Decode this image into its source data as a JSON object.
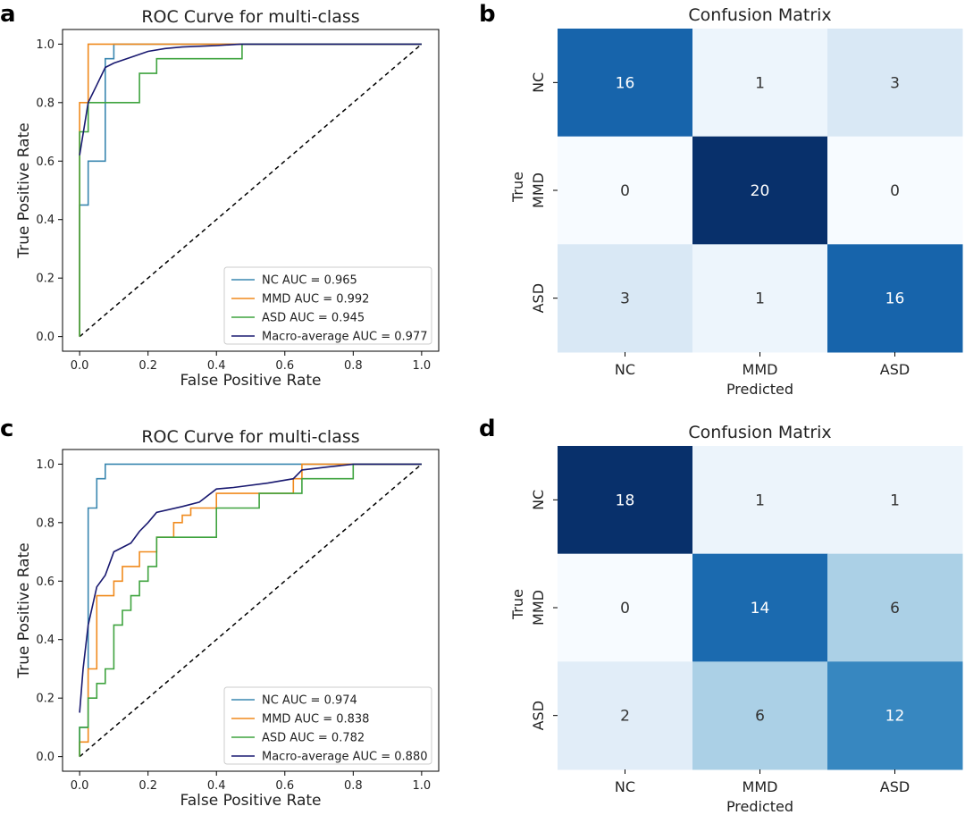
{
  "panel_labels": [
    "a",
    "b",
    "c",
    "d"
  ],
  "colors": {
    "nc": "#3a87b0",
    "mmd": "#f08a1d",
    "asd": "#3fa33f",
    "macro": "#191970",
    "diag": "#000000",
    "cm_low": "#f7fbff",
    "cm_high": "#08306b"
  },
  "chart_data": [
    {
      "type": "line",
      "panel": "a",
      "title": "ROC Curve for multi-class",
      "xlabel": "False Positive Rate",
      "ylabel": "True Positive Rate",
      "xlim": [
        -0.05,
        1.05
      ],
      "ylim": [
        -0.05,
        1.05
      ],
      "xticks": [
        "0.0",
        "0.2",
        "0.4",
        "0.6",
        "0.8",
        "1.0"
      ],
      "yticks": [
        "0.0",
        "0.2",
        "0.4",
        "0.6",
        "0.8",
        "1.0"
      ],
      "grid": false,
      "legend_position": "bottom-right",
      "series": [
        {
          "name": "NC AUC = 0.965",
          "color_key": "nc",
          "x": [
            0,
            0,
            0,
            0.025,
            0.025,
            0.075,
            0.075,
            0.1,
            0.1,
            1.0
          ],
          "y": [
            0,
            0.45,
            0.45,
            0.45,
            0.6,
            0.6,
            0.95,
            0.95,
            1.0,
            1.0
          ]
        },
        {
          "name": "MMD AUC = 0.992",
          "color_key": "mmd",
          "x": [
            0,
            0,
            0.025,
            0.025,
            1.0
          ],
          "y": [
            0,
            0.8,
            0.8,
            1.0,
            1.0
          ]
        },
        {
          "name": "ASD AUC = 0.945",
          "color_key": "asd",
          "x": [
            0,
            0,
            0.025,
            0.025,
            0.175,
            0.175,
            0.225,
            0.225,
            0.475,
            0.475,
            1.0
          ],
          "y": [
            0,
            0.7,
            0.7,
            0.8,
            0.8,
            0.9,
            0.9,
            0.95,
            0.95,
            1.0,
            1.0
          ]
        },
        {
          "name": "Macro-average AUC = 0.977",
          "color_key": "macro",
          "x": [
            0,
            0.025,
            0.05,
            0.075,
            0.1,
            0.15,
            0.2,
            0.25,
            0.3,
            0.4,
            0.47,
            0.6,
            0.8,
            1.0
          ],
          "y": [
            0.62,
            0.8,
            0.86,
            0.92,
            0.935,
            0.955,
            0.975,
            0.985,
            0.99,
            0.995,
            1.0,
            1.0,
            1.0,
            1.0
          ]
        }
      ]
    },
    {
      "type": "heatmap",
      "panel": "b",
      "title": "Confusion Matrix",
      "xlabel": "Predicted",
      "ylabel": "True",
      "x_categories": [
        "NC",
        "MMD",
        "ASD"
      ],
      "y_categories": [
        "NC",
        "MMD",
        "ASD"
      ],
      "values": [
        [
          16,
          1,
          3
        ],
        [
          0,
          20,
          0
        ],
        [
          3,
          1,
          16
        ]
      ],
      "vmin": 0,
      "vmax": 20
    },
    {
      "type": "line",
      "panel": "c",
      "title": "ROC Curve for multi-class",
      "xlabel": "False Positive Rate",
      "ylabel": "True Positive Rate",
      "xlim": [
        -0.05,
        1.05
      ],
      "ylim": [
        -0.05,
        1.05
      ],
      "xticks": [
        "0.0",
        "0.2",
        "0.4",
        "0.6",
        "0.8",
        "1.0"
      ],
      "yticks": [
        "0.0",
        "0.2",
        "0.4",
        "0.6",
        "0.8",
        "1.0"
      ],
      "grid": false,
      "legend_position": "bottom-right",
      "series": [
        {
          "name": "NC AUC = 0.974",
          "color_key": "nc",
          "x": [
            0,
            0,
            0.025,
            0.025,
            0.05,
            0.05,
            0.075,
            0.075,
            1.0
          ],
          "y": [
            0,
            0.1,
            0.1,
            0.85,
            0.85,
            0.95,
            0.95,
            1.0,
            1.0
          ]
        },
        {
          "name": "MMD AUC = 0.838",
          "color_key": "mmd",
          "x": [
            0,
            0,
            0.025,
            0.025,
            0.05,
            0.05,
            0.1,
            0.1,
            0.125,
            0.125,
            0.175,
            0.175,
            0.225,
            0.225,
            0.275,
            0.275,
            0.3,
            0.3,
            0.325,
            0.325,
            0.4,
            0.4,
            0.625,
            0.625,
            0.65,
            0.65,
            0.775,
            0.775,
            1.0
          ],
          "y": [
            0,
            0.05,
            0.05,
            0.3,
            0.3,
            0.55,
            0.55,
            0.6,
            0.6,
            0.65,
            0.65,
            0.7,
            0.7,
            0.75,
            0.75,
            0.8,
            0.8,
            0.825,
            0.825,
            0.85,
            0.85,
            0.9,
            0.9,
            0.95,
            0.95,
            1.0,
            1.0,
            1.0,
            1.0
          ]
        },
        {
          "name": "ASD AUC = 0.782",
          "color_key": "asd",
          "x": [
            0,
            0,
            0.025,
            0.025,
            0.05,
            0.05,
            0.075,
            0.075,
            0.1,
            0.1,
            0.125,
            0.125,
            0.15,
            0.15,
            0.175,
            0.175,
            0.2,
            0.2,
            0.225,
            0.225,
            0.4,
            0.4,
            0.525,
            0.525,
            0.65,
            0.65,
            0.8,
            0.8,
            1.0
          ],
          "y": [
            0,
            0.1,
            0.1,
            0.2,
            0.2,
            0.25,
            0.25,
            0.3,
            0.3,
            0.45,
            0.45,
            0.5,
            0.5,
            0.55,
            0.55,
            0.6,
            0.6,
            0.65,
            0.65,
            0.75,
            0.75,
            0.85,
            0.85,
            0.9,
            0.9,
            0.95,
            0.95,
            1.0,
            1.0
          ]
        },
        {
          "name": "Macro-average AUC = 0.880",
          "color_key": "macro",
          "x": [
            0,
            0.01,
            0.025,
            0.05,
            0.075,
            0.1,
            0.15,
            0.175,
            0.2,
            0.225,
            0.3,
            0.35,
            0.4,
            0.45,
            0.55,
            0.625,
            0.65,
            0.725,
            0.8,
            0.9,
            1.0
          ],
          "y": [
            0.15,
            0.3,
            0.45,
            0.58,
            0.62,
            0.7,
            0.73,
            0.77,
            0.8,
            0.835,
            0.855,
            0.87,
            0.915,
            0.92,
            0.935,
            0.95,
            0.98,
            0.99,
            1.0,
            1.0,
            1.0
          ]
        }
      ]
    },
    {
      "type": "heatmap",
      "panel": "d",
      "title": "Confusion Matrix",
      "xlabel": "Predicted",
      "ylabel": "True",
      "x_categories": [
        "NC",
        "MMD",
        "ASD"
      ],
      "y_categories": [
        "NC",
        "MMD",
        "ASD"
      ],
      "values": [
        [
          18,
          1,
          1
        ],
        [
          0,
          14,
          6
        ],
        [
          2,
          6,
          12
        ]
      ],
      "vmin": 0,
      "vmax": 18
    }
  ]
}
